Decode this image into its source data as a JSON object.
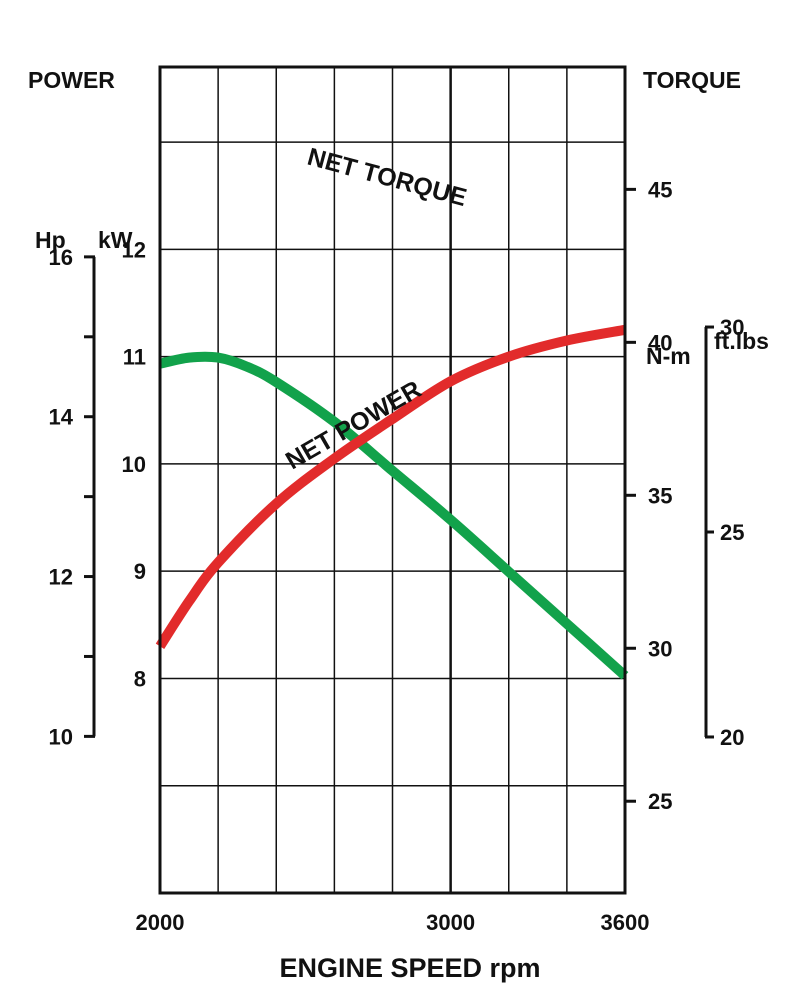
{
  "chart_data": {
    "type": "line",
    "title": "",
    "xlabel": "ENGINE SPEED rpm",
    "x_tick_labels": [
      {
        "value": 2000,
        "label": "2000"
      },
      {
        "value": 3000,
        "label": "3000"
      },
      {
        "value": 3600,
        "label": "3600"
      }
    ],
    "xlim": [
      2000,
      3600
    ],
    "grid": true,
    "left_axis": {
      "title": "POWER",
      "unit_hp": "Hp",
      "unit_kw": "kW",
      "kw_ylim": [
        6,
        13.7
      ],
      "kw_ticks": [
        {
          "value": 12,
          "label": "12"
        },
        {
          "value": 11,
          "label": "11"
        },
        {
          "value": 10,
          "label": "10"
        },
        {
          "value": 9,
          "label": "9"
        },
        {
          "value": 8,
          "label": "8"
        }
      ],
      "hp_range": [
        10,
        16
      ],
      "hp_ticks": [
        {
          "value": 16,
          "label": "16"
        },
        {
          "value": 14,
          "label": "14"
        },
        {
          "value": 12,
          "label": "12"
        },
        {
          "value": 10,
          "label": "10"
        }
      ]
    },
    "right_axis": {
      "title": "TORQUE",
      "unit_nm": "N-m",
      "unit_ftlbs": "ft.lbs",
      "nm_ylim": [
        22,
        49
      ],
      "nm_ticks": [
        {
          "value": 45,
          "label": "45"
        },
        {
          "value": 40,
          "label": "40"
        },
        {
          "value": 35,
          "label": "35"
        },
        {
          "value": 30,
          "label": "30"
        },
        {
          "value": 25,
          "label": "25"
        }
      ],
      "ftlbs_range": [
        20,
        30
      ],
      "ftlbs_ticks": [
        {
          "value": 30,
          "label": "30"
        },
        {
          "value": 25,
          "label": "25"
        },
        {
          "value": 20,
          "label": "20"
        }
      ]
    },
    "series": [
      {
        "name": "NET TORQUE",
        "axis": "right",
        "unit": "N-m",
        "color": "#12a24b",
        "x": [
          2000,
          2100,
          2200,
          2300,
          2400,
          2600,
          2800,
          3000,
          3200,
          3400,
          3600
        ],
        "y": [
          39.3,
          39.5,
          39.5,
          39.2,
          38.7,
          37.4,
          35.8,
          34.2,
          32.5,
          30.8,
          29.1
        ]
      },
      {
        "name": "NET POWER",
        "axis": "left",
        "unit": "kW",
        "color": "#e22b2b",
        "x": [
          2000,
          2100,
          2200,
          2400,
          2600,
          2800,
          3000,
          3200,
          3400,
          3600
        ],
        "y": [
          8.3,
          8.72,
          9.08,
          9.63,
          10.05,
          10.42,
          10.77,
          11.0,
          11.15,
          11.25
        ]
      }
    ]
  }
}
